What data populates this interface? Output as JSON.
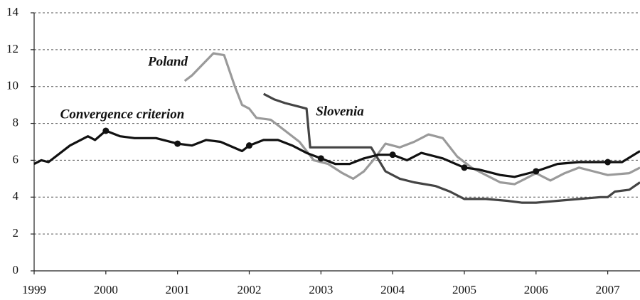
{
  "chart_data": {
    "type": "line",
    "xlim": [
      1999,
      2007.45
    ],
    "xticks": [
      1999,
      2000,
      2001,
      2002,
      2003,
      2004,
      2005,
      2006,
      2007
    ],
    "ylim": [
      0,
      14
    ],
    "yticks": [
      0,
      2,
      4,
      6,
      8,
      10,
      12,
      14
    ],
    "grid": true,
    "series": [
      {
        "name": "Convergence criterion",
        "color": "#111111",
        "x": [
          1999.0,
          1999.1,
          1999.2,
          1999.5,
          1999.75,
          1999.85,
          2000.0,
          2000.2,
          2000.4,
          2000.7,
          2001.0,
          2001.2,
          2001.4,
          2001.6,
          2001.9,
          2002.0,
          2002.2,
          2002.4,
          2002.6,
          2002.8,
          2003.0,
          2003.2,
          2003.4,
          2003.6,
          2003.8,
          2004.0,
          2004.2,
          2004.4,
          2004.7,
          2005.0,
          2005.2,
          2005.5,
          2005.7,
          2006.0,
          2006.3,
          2006.6,
          2007.0,
          2007.2,
          2007.45
        ],
        "values": [
          5.8,
          6.0,
          5.9,
          6.8,
          7.3,
          7.1,
          7.6,
          7.3,
          7.2,
          7.2,
          6.9,
          6.8,
          7.1,
          7.0,
          6.5,
          6.8,
          7.1,
          7.1,
          6.8,
          6.4,
          6.1,
          5.8,
          5.8,
          6.1,
          6.3,
          6.3,
          6.0,
          6.4,
          6.1,
          5.6,
          5.5,
          5.2,
          5.1,
          5.4,
          5.8,
          5.9,
          5.9,
          5.9,
          6.5
        ]
      },
      {
        "name": "Poland",
        "color": "#9a9a9a",
        "x": [
          2001.1,
          2001.2,
          2001.35,
          2001.5,
          2001.65,
          2001.8,
          2001.9,
          2002.0,
          2002.1,
          2002.3,
          2002.5,
          2002.7,
          2002.9,
          2003.1,
          2003.3,
          2003.45,
          2003.6,
          2003.75,
          2003.9,
          2004.1,
          2004.3,
          2004.5,
          2004.7,
          2004.9,
          2005.1,
          2005.3,
          2005.5,
          2005.7,
          2005.85,
          2006.0,
          2006.2,
          2006.4,
          2006.6,
          2006.8,
          2007.0,
          2007.3,
          2007.45
        ],
        "values": [
          10.3,
          10.6,
          11.2,
          11.8,
          11.7,
          10.0,
          9.0,
          8.8,
          8.3,
          8.2,
          7.6,
          7.0,
          6.0,
          5.8,
          5.3,
          5.0,
          5.4,
          6.1,
          6.9,
          6.7,
          7.0,
          7.4,
          7.2,
          6.2,
          5.6,
          5.2,
          4.8,
          4.7,
          5.0,
          5.3,
          4.9,
          5.3,
          5.6,
          5.4,
          5.2,
          5.3,
          5.6
        ]
      },
      {
        "name": "Slovenia",
        "color": "#444444",
        "x": [
          2002.2,
          2002.35,
          2002.5,
          2002.7,
          2002.8,
          2002.85,
          2003.0,
          2003.7,
          2003.9,
          2004.1,
          2004.3,
          2004.6,
          2004.8,
          2005.0,
          2005.3,
          2005.6,
          2005.8,
          2006.0,
          2006.3,
          2006.6,
          2006.9,
          2007.0,
          2007.1,
          2007.3,
          2007.45
        ],
        "values": [
          9.6,
          9.3,
          9.1,
          8.9,
          8.8,
          6.7,
          6.7,
          6.7,
          5.4,
          5.0,
          4.8,
          4.6,
          4.3,
          3.9,
          3.9,
          3.8,
          3.7,
          3.7,
          3.8,
          3.9,
          4.0,
          4.0,
          4.3,
          4.4,
          4.8
        ]
      }
    ]
  }
}
